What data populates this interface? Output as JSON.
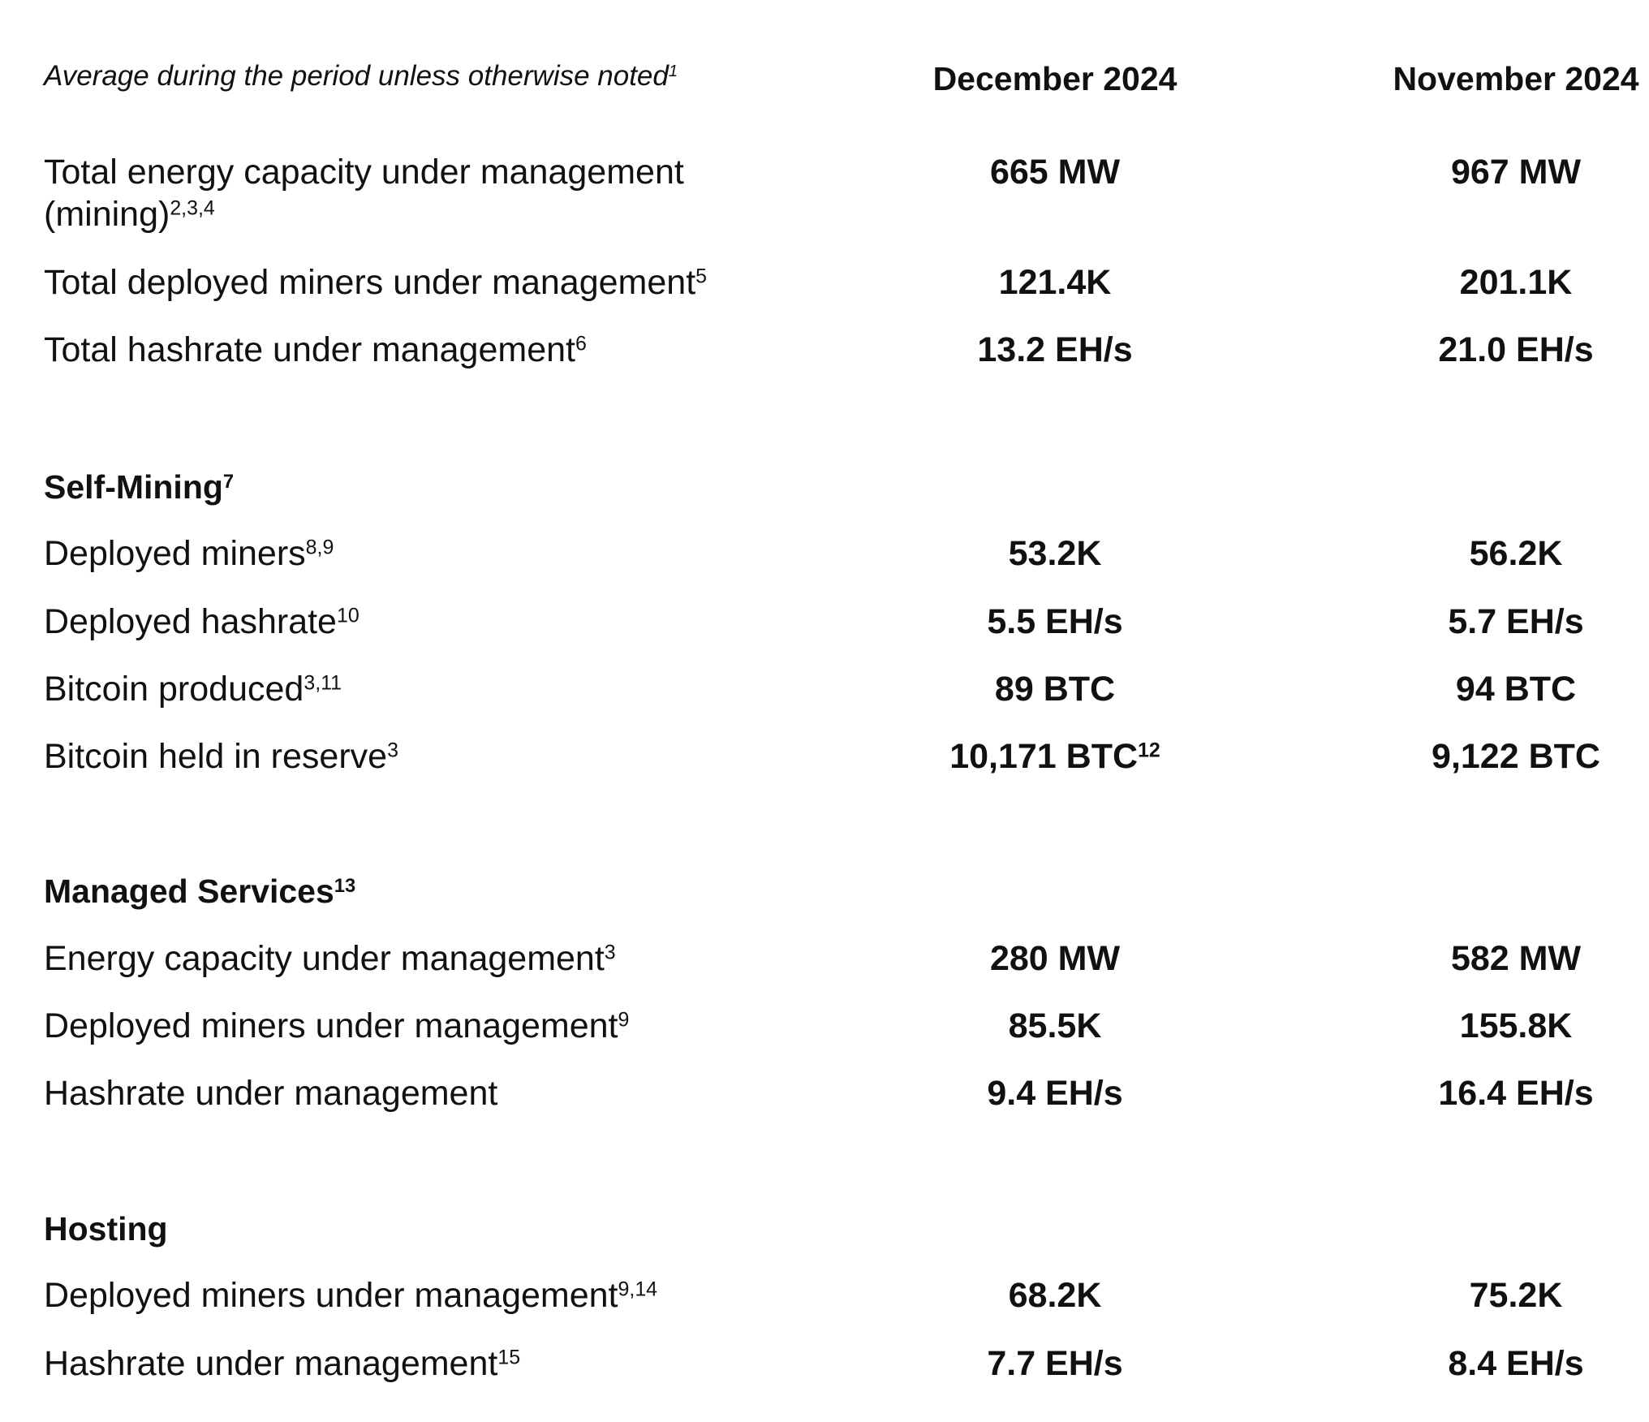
{
  "header": {
    "note": "Average during the period unless otherwise noted",
    "note_sup": "1",
    "col1": "December 2024",
    "col2": "November 2024"
  },
  "summary": [
    {
      "label": "Total energy capacity under management (mining)",
      "sup": "2,3,4",
      "dec": "665 MW",
      "dec_sup": "",
      "nov": "967 MW"
    },
    {
      "label": "Total deployed miners under management",
      "sup": "5",
      "dec": "121.4K",
      "dec_sup": "",
      "nov": "201.1K"
    },
    {
      "label": "Total hashrate under management",
      "sup": "6",
      "dec": "13.2 EH/s",
      "dec_sup": "",
      "nov": "21.0 EH/s"
    }
  ],
  "self_mining": {
    "title": "Self-Mining",
    "title_sup": "7",
    "rows": [
      {
        "label": "Deployed miners",
        "sup": "8,9",
        "dec": "53.2K",
        "dec_sup": "",
        "nov": "56.2K"
      },
      {
        "label": "Deployed hashrate",
        "sup": "10",
        "dec": "5.5 EH/s",
        "dec_sup": "",
        "nov": "5.7 EH/s"
      },
      {
        "label": "Bitcoin produced",
        "sup": "3,11",
        "dec": "89 BTC",
        "dec_sup": "",
        "nov": "94 BTC"
      },
      {
        "label": "Bitcoin held in reserve",
        "sup": "3",
        "dec": "10,171 BTC",
        "dec_sup": "12",
        "nov": "9,122 BTC"
      }
    ]
  },
  "managed_services": {
    "title": "Managed Services",
    "title_sup": "13",
    "rows": [
      {
        "label": "Energy capacity under management",
        "sup": "3",
        "dec": "280 MW",
        "dec_sup": "",
        "nov": "582 MW"
      },
      {
        "label": "Deployed miners under management",
        "sup": "9",
        "dec": "85.5K",
        "dec_sup": "",
        "nov": "155.8K"
      },
      {
        "label": "Hashrate under management",
        "sup": "",
        "dec": "9.4 EH/s",
        "dec_sup": "",
        "nov": "16.4 EH/s"
      }
    ]
  },
  "hosting": {
    "title": "Hosting",
    "title_sup": "",
    "rows": [
      {
        "label": "Deployed miners under management",
        "sup": "9,14",
        "dec": "68.2K",
        "dec_sup": "",
        "nov": "75.2K"
      },
      {
        "label": "Hashrate under management",
        "sup": "15",
        "dec": "7.7 EH/s",
        "dec_sup": "",
        "nov": "8.4 EH/s"
      }
    ]
  }
}
